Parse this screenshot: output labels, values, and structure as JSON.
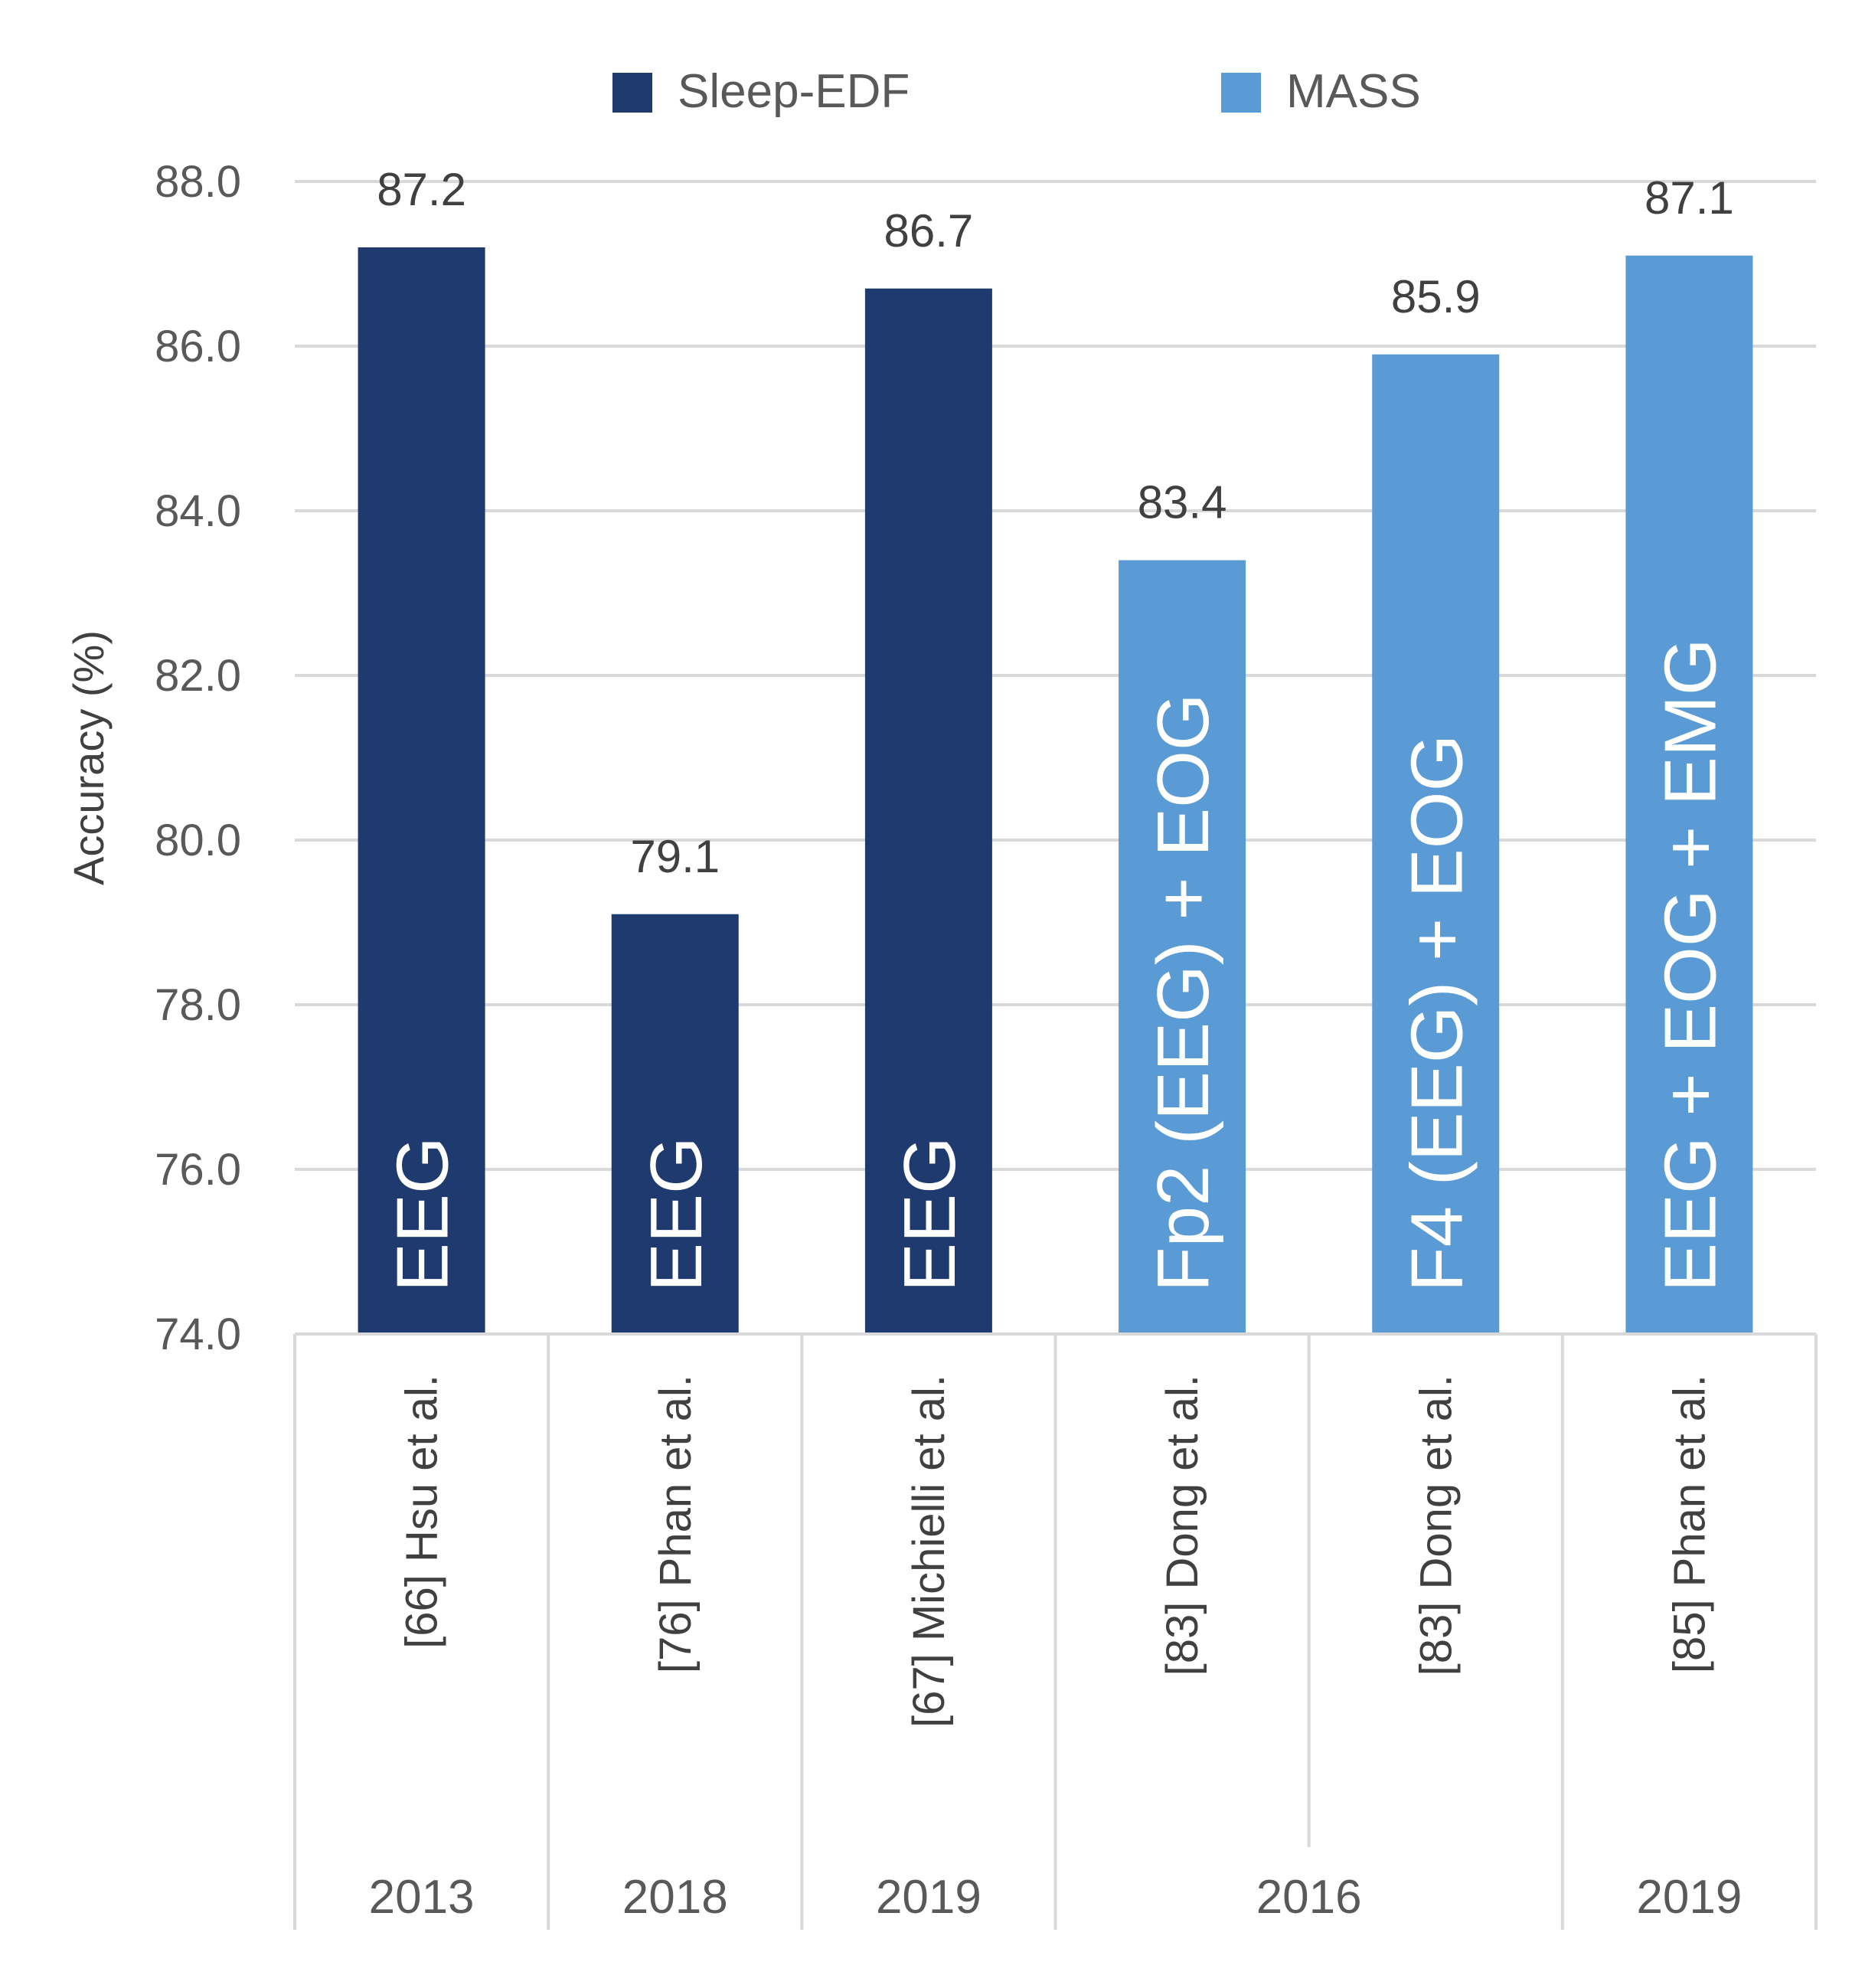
{
  "chart_data": {
    "type": "bar",
    "title": "",
    "ylabel": "Accuracy (%)",
    "ylim": [
      74.0,
      88.0
    ],
    "yticks": [
      "74.0",
      "76.0",
      "78.0",
      "80.0",
      "82.0",
      "84.0",
      "86.0",
      "88.0"
    ],
    "legend": [
      {
        "name": "Sleep-EDF",
        "color": "#1f3a6e"
      },
      {
        "name": "MASS",
        "color": "#5b9bd5"
      }
    ],
    "legend_position": "top",
    "bars": [
      {
        "category": "[66] Hsu et al.",
        "year": "2013",
        "value": 87.2,
        "label": "87.2",
        "series": "Sleep-EDF",
        "inbar": "EEG"
      },
      {
        "category": "[76] Phan et al.",
        "year": "2018",
        "value": 79.1,
        "label": "79.1",
        "series": "Sleep-EDF",
        "inbar": "EEG"
      },
      {
        "category": "[67] Michielli et al.",
        "year": "2019",
        "value": 86.7,
        "label": "86.7",
        "series": "Sleep-EDF",
        "inbar": "EEG"
      },
      {
        "category": "[83] Dong et al.",
        "year": "2016",
        "value": 83.4,
        "label": "83.4",
        "series": "MASS",
        "inbar": "Fp2 (EEG) + EOG"
      },
      {
        "category": "[83] Dong et al.",
        "year": "2016",
        "value": 85.9,
        "label": "85.9",
        "series": "MASS",
        "inbar": "F4 (EEG) + EOG"
      },
      {
        "category": "[85] Phan et al.",
        "year": "2019",
        "value": 87.1,
        "label": "87.1",
        "series": "MASS",
        "inbar": "EEG + EOG + EMG"
      }
    ],
    "year_groups": [
      {
        "year": "2013",
        "start": 0,
        "end": 0
      },
      {
        "year": "2018",
        "start": 1,
        "end": 1
      },
      {
        "year": "2019",
        "start": 2,
        "end": 2
      },
      {
        "year": "2016",
        "start": 3,
        "end": 4
      },
      {
        "year": "2019",
        "start": 5,
        "end": 5
      }
    ],
    "grid": true
  }
}
